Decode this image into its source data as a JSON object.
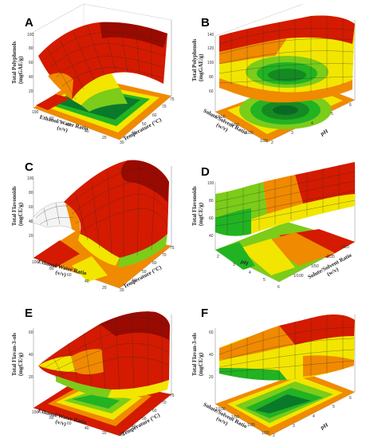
{
  "panels": [
    {
      "id": "A",
      "z_label_1": "Total Polyphenols",
      "z_label_2": "(mgGAE/g)",
      "x_label": "Temperature (°C)",
      "y_label_1": "Ethanol/Water Ratio",
      "y_label_2": "(v/v)",
      "z_ticks": [
        "100",
        "80",
        "60",
        "40",
        "20"
      ],
      "x_ticks": [
        "30",
        "40",
        "50",
        "60",
        "70",
        "75"
      ],
      "y_ticks": [
        "100",
        "80",
        "60",
        "40",
        "20"
      ]
    },
    {
      "id": "B",
      "z_label_1": "Total Polyphenols",
      "z_label_2": "(mgGAE/g)",
      "x_label": "pH",
      "y_label_1": "Solute/Solvent Ratio",
      "y_label_2": "(w/v)",
      "z_ticks": [
        "140",
        "120",
        "100",
        "80",
        "60"
      ],
      "x_ticks": [
        "2",
        "3",
        "4",
        "5",
        "6"
      ],
      "y_ticks": [
        "1/100",
        "1/50",
        "1/35",
        "1/20"
      ]
    },
    {
      "id": "C",
      "z_label_1": "Total Flavonoids",
      "z_label_2": "(mgCE/g)",
      "x_label": "Temperature (°C)",
      "y_label_1": "Ethanol/Water Ratio",
      "y_label_2": "(v/v)",
      "z_ticks": [
        "100",
        "80",
        "60",
        "40",
        "20"
      ],
      "x_ticks": [
        "30",
        "40",
        "50",
        "60",
        "70",
        "75"
      ],
      "y_ticks": [
        "100",
        "80",
        "60",
        "40",
        "20"
      ]
    },
    {
      "id": "D",
      "z_label_1": "Total Flavonoids",
      "z_label_2": "(mgCE/g)",
      "x_label": "pH",
      "y_label_1": "Solute/Solvent Ratio",
      "y_label_2": "(w/v)",
      "z_ticks": [
        "100",
        "80",
        "60",
        "40"
      ],
      "x_ticks": [
        "2",
        "3",
        "4",
        "5",
        "6"
      ],
      "y_ticks": [
        "1/20",
        "1/35",
        "1/50",
        "1/100"
      ]
    },
    {
      "id": "E",
      "z_label_1": "Total Flavan-3-ols",
      "z_label_2": "(mgCE/g)",
      "x_label": "Temperature (°C)",
      "y_label_1": "Ethanol/Water Ratio",
      "y_label_2": "(v/v)",
      "z_ticks": [
        "60",
        "40",
        "20"
      ],
      "x_ticks": [
        "30",
        "40",
        "50",
        "60",
        "70",
        "75"
      ],
      "y_ticks": [
        "100",
        "80",
        "60",
        "40",
        "20"
      ]
    },
    {
      "id": "F",
      "z_label_1": "Total Flavan-3-ols",
      "z_label_2": "(mgCE/g)",
      "x_label": "pH",
      "y_label_1": "Solute/Solvent Ratio",
      "y_label_2": "(w/v)",
      "z_ticks": [
        "60",
        "40",
        "20"
      ],
      "x_ticks": [
        "2",
        "3",
        "4",
        "5",
        "6"
      ],
      "y_ticks": [
        "1/100",
        "1/50",
        "1/35",
        "1/20"
      ]
    }
  ],
  "colors": {
    "low": "#0a7a2a",
    "mid_green": "#22b322",
    "lime": "#7ccc1a",
    "yellow": "#f2e600",
    "orange": "#f08a00",
    "red": "#d41a00",
    "dark_red": "#8c0a00",
    "grid": "#2b2b2b"
  }
}
